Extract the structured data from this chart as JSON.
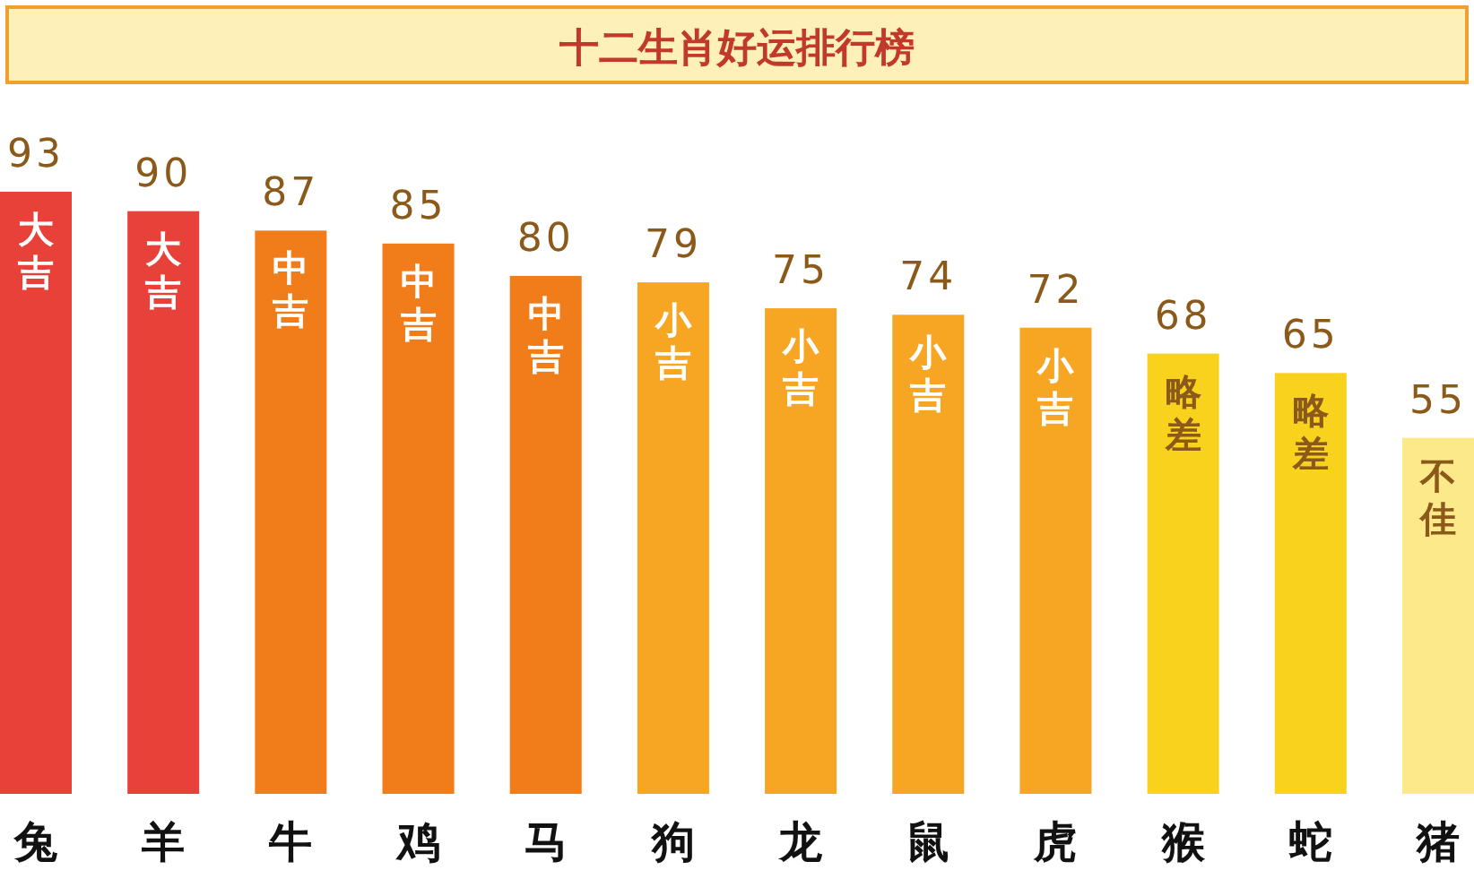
{
  "chart_data": {
    "type": "bar",
    "title": "十二生肖好运排行榜",
    "categories": [
      "兔",
      "羊",
      "牛",
      "鸡",
      "马",
      "狗",
      "龙",
      "鼠",
      "虎",
      "猴",
      "蛇",
      "猪"
    ],
    "values": [
      93,
      90,
      87,
      85,
      80,
      79,
      75,
      74,
      72,
      68,
      65,
      55
    ],
    "colors": [
      "#e8413a",
      "#e8413a",
      "#f07d1a",
      "#f07d1a",
      "#f07d1a",
      "#f6a623",
      "#f6a623",
      "#f6a623",
      "#f6a623",
      "#f8d21c",
      "#f8d21c",
      "#fbe98a"
    ],
    "data_labels": true,
    "annotations": [
      {
        "text": "大吉",
        "x": "兔",
        "y": 93
      },
      {
        "text": "大吉",
        "x": "羊",
        "y": 90
      },
      {
        "text": "中吉",
        "x": "牛",
        "y": 87
      },
      {
        "text": "中吉",
        "x": "鸡",
        "y": 85
      },
      {
        "text": "中吉",
        "x": "马",
        "y": 80
      },
      {
        "text": "小吉",
        "x": "狗",
        "y": 79
      },
      {
        "text": "小吉",
        "x": "龙",
        "y": 75
      },
      {
        "text": "小吉",
        "x": "鼠",
        "y": 74
      },
      {
        "text": "小吉",
        "x": "虎",
        "y": 72
      },
      {
        "text": "略差",
        "x": "猴",
        "y": 68
      },
      {
        "text": "略差",
        "x": "蛇",
        "y": 65
      },
      {
        "text": "不佳",
        "x": "猪",
        "y": 55
      }
    ]
  }
}
